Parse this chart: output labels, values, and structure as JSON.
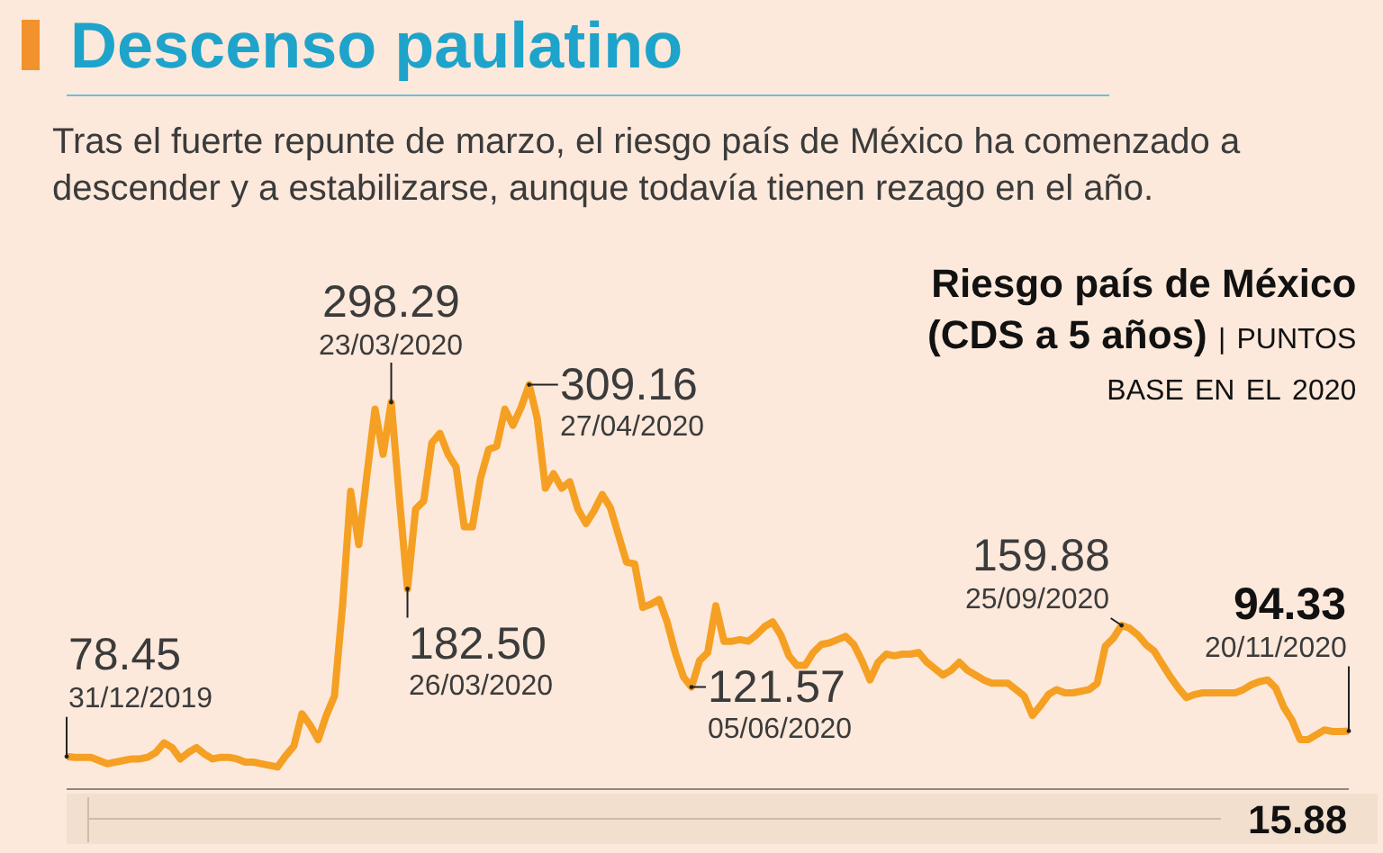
{
  "chart_data": {
    "type": "line",
    "title": "Descenso paulatino",
    "subtitle": "Tras el fuerte repunte de marzo, el riesgo país de México ha comenzado a descender y a estabilizarse, aunque todavía tienen rezago en el año.",
    "ylabel": "Riesgo país de México (CDS a 5 años) | PUNTOS BASE EN EL 2020",
    "color": "#f5a023",
    "categories": [
      null,
      null,
      null,
      null,
      null,
      null,
      null,
      null,
      null,
      null,
      null,
      null,
      null,
      null,
      null,
      null,
      null,
      null,
      null,
      null,
      null,
      null,
      null,
      null,
      null,
      null,
      null,
      null,
      null,
      null,
      null,
      null,
      null,
      null,
      null,
      null,
      null,
      null,
      null,
      null,
      null,
      null,
      null,
      null,
      null,
      null,
      null,
      null,
      null,
      null,
      null,
      null,
      null,
      null,
      null,
      null,
      null,
      null,
      null,
      null,
      null,
      null,
      null,
      null,
      null,
      null,
      null,
      null,
      null,
      null,
      null,
      null,
      null,
      null,
      null,
      null,
      null,
      null,
      null,
      null,
      null,
      null,
      null,
      null,
      null,
      null,
      null,
      null,
      null,
      null,
      null,
      null,
      null,
      null,
      null,
      null,
      null,
      null,
      null,
      null,
      null,
      null,
      null,
      null,
      null,
      null,
      null,
      null,
      null,
      null,
      null,
      null,
      null,
      null,
      null,
      null,
      null,
      null,
      null,
      null,
      null,
      null,
      null,
      null,
      null,
      null,
      null,
      null,
      null,
      null,
      null,
      null,
      null,
      null,
      null,
      null,
      null,
      null,
      null,
      null,
      null,
      null,
      null,
      null,
      null,
      null,
      null,
      null,
      null,
      null,
      null,
      null,
      null,
      null,
      null,
      null,
      null,
      null,
      null
    ],
    "values": [
      78.45,
      78,
      78,
      78,
      76,
      74,
      75,
      76,
      77,
      77,
      78,
      81,
      87,
      84,
      77,
      81,
      84,
      80,
      77,
      78,
      78,
      77,
      75,
      75,
      74,
      73,
      72,
      79,
      85,
      105,
      98,
      89,
      104,
      116,
      172,
      243,
      210,
      253,
      294,
      266,
      298.29,
      239,
      182.5,
      232,
      237,
      273,
      279,
      266,
      258,
      221,
      221,
      251,
      269,
      271,
      294,
      284,
      295,
      309.16,
      288,
      245,
      254,
      245,
      249,
      232,
      223,
      231,
      241,
      233,
      216,
      199,
      198,
      171,
      173,
      176,
      162,
      143,
      128,
      121.57,
      138,
      143,
      172,
      150,
      150,
      151,
      150,
      154,
      159,
      162,
      154,
      141,
      135,
      135,
      143,
      148,
      149,
      151,
      153,
      148,
      138,
      126,
      137,
      142,
      141,
      142,
      142,
      143,
      137,
      133,
      129,
      132,
      137,
      132,
      129,
      126,
      124,
      124,
      124,
      120,
      116,
      104,
      110,
      117,
      120,
      118,
      118,
      119,
      120,
      124,
      147,
      152,
      159.88,
      158,
      154,
      148,
      144,
      136,
      128,
      121,
      115,
      117,
      118,
      118,
      118,
      118,
      118,
      120,
      123,
      125,
      126,
      121,
      109,
      101,
      89,
      89,
      92,
      95,
      94,
      94,
      94.33
    ],
    "value_labels": [
      "78.45",
      null,
      null,
      null,
      null,
      null,
      null,
      null,
      null,
      null,
      null,
      null,
      null,
      null,
      null,
      null,
      null,
      null,
      null,
      null,
      null,
      null,
      null,
      null,
      null,
      null,
      null,
      null,
      null,
      null,
      null,
      null,
      null,
      null,
      null,
      null,
      null,
      null,
      null,
      null,
      "298.29",
      null,
      "182.50",
      null,
      null,
      null,
      null,
      null,
      null,
      null,
      null,
      null,
      null,
      null,
      null,
      null,
      null,
      "309.16",
      null,
      null,
      null,
      null,
      null,
      null,
      null,
      null,
      null,
      null,
      null,
      null,
      null,
      null,
      null,
      null,
      null,
      null,
      null,
      "121.57",
      null,
      null,
      null,
      null,
      null,
      null,
      null,
      null,
      null,
      null,
      null,
      null,
      null,
      null,
      null,
      null,
      null,
      null,
      null,
      null,
      null,
      null,
      null,
      null,
      null,
      null,
      null,
      null,
      null,
      null,
      null,
      null,
      null,
      null,
      null,
      null,
      null,
      null,
      null,
      null,
      null,
      null,
      null,
      null,
      null,
      null,
      null,
      null,
      null,
      null,
      null,
      null,
      "159.88",
      null,
      null,
      null,
      null,
      null,
      null,
      null,
      null,
      null,
      null,
      null,
      null,
      null,
      null,
      null,
      null,
      null,
      null,
      null,
      null,
      null,
      null,
      null,
      null,
      null,
      null,
      null,
      "94.33"
    ],
    "tick_labels": false,
    "annotations": [
      "31/12/2019",
      "23/03/2020",
      "26/03/2020",
      "27/04/2020",
      "05/06/2020",
      "25/09/2020",
      "20/11/2020",
      "15.88"
    ]
  }
}
